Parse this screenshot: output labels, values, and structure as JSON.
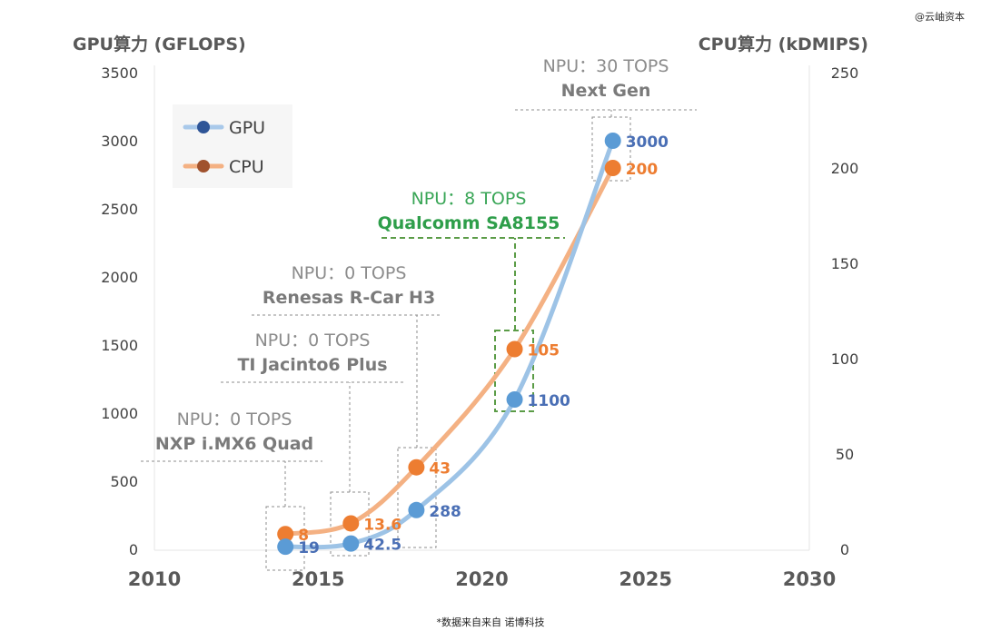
{
  "watermark": "@云岫资本",
  "source": "*数据来自来自 诺博科技",
  "chart_data": {
    "type": "scatter",
    "y_left_label": "GPU算力 (GFLOPS)",
    "y_right_label": "CPU算力 (kDMIPS)",
    "x_range": [
      2010,
      2030
    ],
    "x_ticks": [
      "2010",
      "2015",
      "2020",
      "2025",
      "2030"
    ],
    "y_left_range": [
      0,
      3500
    ],
    "y_left_ticks": [
      "0",
      "500",
      "1000",
      "1500",
      "2000",
      "2500",
      "3000",
      "3500"
    ],
    "y_right_range": [
      0,
      250
    ],
    "y_right_ticks": [
      "0",
      "50",
      "100",
      "150",
      "200",
      "250"
    ],
    "grid": "off",
    "legend_position": "top-left",
    "series": [
      {
        "name": "GPU",
        "axis": "left",
        "color": "#5b9bd5",
        "x": [
          2014,
          2016,
          2018,
          2021,
          2024
        ],
        "y": [
          19,
          42.5,
          288,
          1100,
          3000
        ],
        "labels": [
          "19",
          "42.5",
          "288",
          "1100",
          "3000"
        ]
      },
      {
        "name": "CPU",
        "axis": "right",
        "color": "#ed7d31",
        "x": [
          2014,
          2016,
          2018,
          2021,
          2024
        ],
        "y": [
          8,
          13.6,
          43,
          105,
          200
        ],
        "labels": [
          "8",
          "13.6",
          "43",
          "105",
          "200"
        ]
      }
    ],
    "annotations": [
      {
        "npu": "NPU：0 TOPS",
        "name": "NXP i.MX6 Quad",
        "highlight": false
      },
      {
        "npu": "NPU：0 TOPS",
        "name": "TI Jacinto6 Plus",
        "highlight": false
      },
      {
        "npu": "NPU：0 TOPS",
        "name": "Renesas R-Car H3",
        "highlight": false
      },
      {
        "npu": "NPU：8 TOPS",
        "name": "Qualcomm SA8155",
        "highlight": true
      },
      {
        "npu": "NPU：30 TOPS",
        "name": "Next Gen",
        "highlight": false
      }
    ]
  }
}
